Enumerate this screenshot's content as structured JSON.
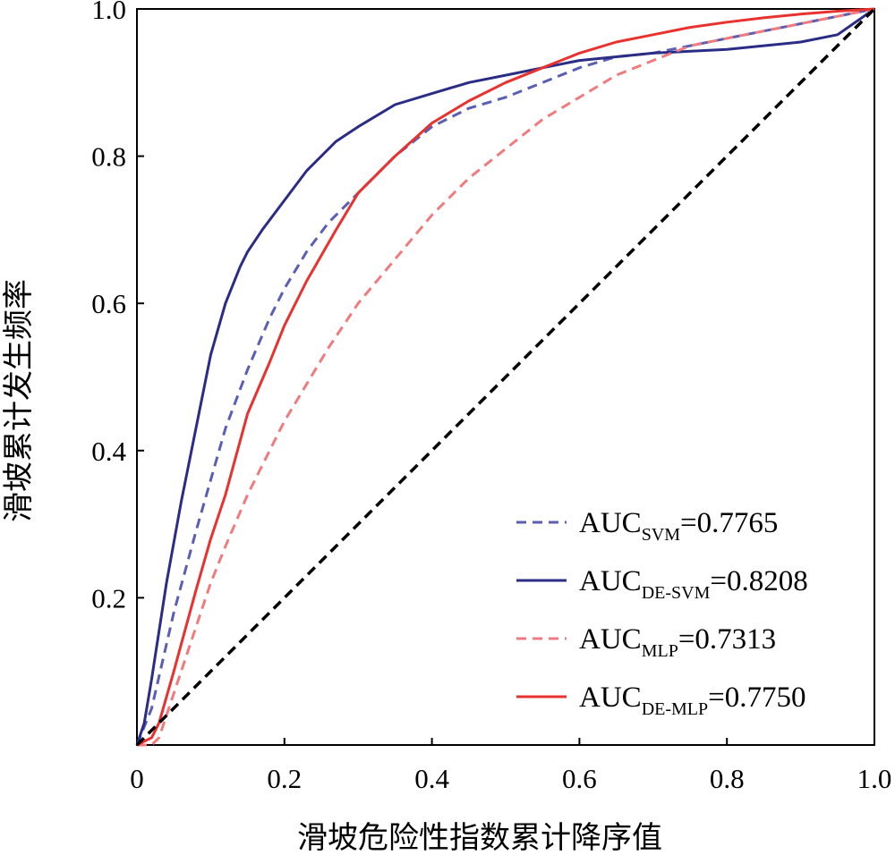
{
  "chart_data": {
    "type": "line",
    "xlabel": "滑坡危险性指数累计降序值",
    "ylabel": "滑坡累计发生频率",
    "xlim": [
      0,
      1
    ],
    "ylim": [
      0,
      1
    ],
    "x_ticks": [
      "0",
      "0.2",
      "0.4",
      "0.6",
      "0.8",
      "1.0"
    ],
    "y_ticks": [
      "0.2",
      "0.4",
      "0.6",
      "0.8",
      "1.0"
    ],
    "grid": false,
    "legend_position": "bottom-right",
    "series": [
      {
        "name": "AUC_SVM=0.7765",
        "label_main": "AUC",
        "label_sub": "SVM",
        "label_value": "=0.7765",
        "color": "#5b5fb4",
        "dash": true,
        "x": [
          0,
          0.02,
          0.05,
          0.08,
          0.1,
          0.12,
          0.15,
          0.18,
          0.2,
          0.23,
          0.26,
          0.3,
          0.35,
          0.4,
          0.45,
          0.5,
          0.55,
          0.6,
          0.65,
          0.7,
          0.75,
          0.8,
          0.85,
          0.9,
          0.95,
          1.0
        ],
        "y": [
          0,
          0.05,
          0.18,
          0.29,
          0.36,
          0.43,
          0.51,
          0.58,
          0.62,
          0.67,
          0.71,
          0.75,
          0.8,
          0.84,
          0.865,
          0.88,
          0.9,
          0.92,
          0.935,
          0.94,
          0.95,
          0.96,
          0.97,
          0.98,
          0.99,
          1.0
        ]
      },
      {
        "name": "AUC_DE-SVM=0.8208",
        "label_main": "AUC",
        "label_sub": "DE-SVM",
        "label_value": "=0.8208",
        "color": "#2b2c86",
        "dash": false,
        "x": [
          0,
          0.01,
          0.02,
          0.04,
          0.06,
          0.08,
          0.1,
          0.12,
          0.14,
          0.15,
          0.17,
          0.2,
          0.23,
          0.27,
          0.3,
          0.35,
          0.4,
          0.45,
          0.5,
          0.55,
          0.6,
          0.65,
          0.7,
          0.8,
          0.9,
          0.95,
          1.0
        ],
        "y": [
          0,
          0.03,
          0.09,
          0.22,
          0.33,
          0.43,
          0.53,
          0.6,
          0.65,
          0.67,
          0.7,
          0.74,
          0.78,
          0.82,
          0.84,
          0.87,
          0.885,
          0.9,
          0.91,
          0.92,
          0.93,
          0.935,
          0.94,
          0.945,
          0.955,
          0.965,
          1.0
        ]
      },
      {
        "name": "AUC_MLP=0.7313",
        "label_main": "AUC",
        "label_sub": "MLP",
        "label_value": "=0.7313",
        "color": "#f07b7e",
        "dash": true,
        "x": [
          0,
          0.02,
          0.03,
          0.05,
          0.08,
          0.1,
          0.12,
          0.15,
          0.18,
          0.2,
          0.23,
          0.26,
          0.3,
          0.35,
          0.4,
          0.45,
          0.5,
          0.55,
          0.6,
          0.65,
          0.7,
          0.75,
          0.8,
          0.85,
          0.9,
          0.95,
          1.0
        ],
        "y": [
          0,
          0.0,
          0.01,
          0.07,
          0.16,
          0.22,
          0.27,
          0.34,
          0.4,
          0.44,
          0.49,
          0.54,
          0.6,
          0.66,
          0.72,
          0.77,
          0.81,
          0.85,
          0.88,
          0.91,
          0.93,
          0.95,
          0.96,
          0.97,
          0.98,
          0.99,
          1.0
        ]
      },
      {
        "name": "AUC_DE-MLP=0.7750",
        "label_main": "AUC",
        "label_sub": "DE-MLP",
        "label_value": "=0.7750",
        "color": "#e8322f",
        "dash": false,
        "x": [
          0,
          0.02,
          0.03,
          0.05,
          0.08,
          0.1,
          0.12,
          0.15,
          0.18,
          0.2,
          0.23,
          0.27,
          0.3,
          0.35,
          0.4,
          0.45,
          0.5,
          0.55,
          0.6,
          0.65,
          0.7,
          0.75,
          0.8,
          0.85,
          0.9,
          0.95,
          1.0
        ],
        "y": [
          0,
          0.01,
          0.03,
          0.1,
          0.21,
          0.28,
          0.34,
          0.45,
          0.52,
          0.57,
          0.63,
          0.7,
          0.75,
          0.8,
          0.845,
          0.875,
          0.9,
          0.92,
          0.94,
          0.955,
          0.965,
          0.975,
          0.982,
          0.988,
          0.993,
          0.997,
          1.0
        ]
      },
      {
        "name": "",
        "color": "#000000",
        "dash": true,
        "reference": true,
        "x": [
          0,
          1
        ],
        "y": [
          0,
          1
        ]
      }
    ]
  }
}
